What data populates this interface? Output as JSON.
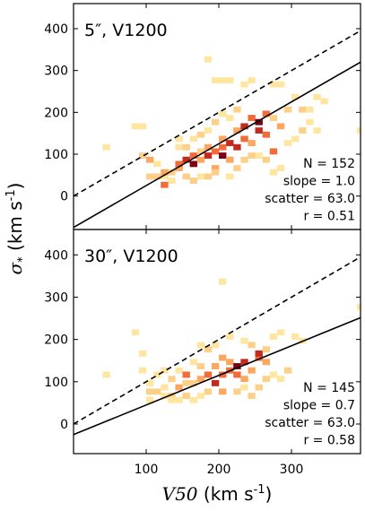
{
  "chart_data": {
    "type": "heatmap",
    "xlabel_var": "V50",
    "xlabel_unit": " (km s",
    "xlabel_exp": "-1",
    "xlabel_close": ")",
    "ylabel_var": "σ",
    "ylabel_sub": "*",
    "ylabel_unit": " (km s",
    "ylabel_exp": "-1",
    "ylabel_close": ")",
    "xlim": [
      0,
      395
    ],
    "x_ticks": [
      100,
      200,
      300
    ],
    "bin_size_x": 10,
    "bin_size_y": 14,
    "colors": [
      "#ffe6a0",
      "#fdd08a",
      "#fca75f",
      "#f26b3a",
      "#c52a1e",
      "#7a0016"
    ],
    "panels": [
      {
        "title": "5″, V1200",
        "ylim": [
          -80,
          460
        ],
        "y_ticks": [
          0,
          100,
          200,
          300,
          400
        ],
        "stats": [
          "N = 152",
          "slope = 1.0",
          "scatter = 63.0",
          "r = 0.51"
        ],
        "dashed_line": {
          "slope": 1.0,
          "intercept": 0
        },
        "fit_line": {
          "slope": 1.0,
          "intercept": -75
        },
        "bins": [
          [
            40,
            110,
            0
          ],
          [
            80,
            160,
            0
          ],
          [
            90,
            160,
            0
          ],
          [
            90,
            90,
            1
          ],
          [
            100,
            80,
            2
          ],
          [
            110,
            70,
            0
          ],
          [
            100,
            40,
            1
          ],
          [
            110,
            40,
            1
          ],
          [
            120,
            40,
            0
          ],
          [
            120,
            50,
            2
          ],
          [
            130,
            50,
            1
          ],
          [
            140,
            60,
            2
          ],
          [
            140,
            70,
            3
          ],
          [
            150,
            80,
            4
          ],
          [
            160,
            70,
            5
          ],
          [
            160,
            90,
            3
          ],
          [
            170,
            80,
            2
          ],
          [
            170,
            100,
            1
          ],
          [
            180,
            90,
            4
          ],
          [
            180,
            110,
            2
          ],
          [
            190,
            100,
            3
          ],
          [
            190,
            60,
            2
          ],
          [
            200,
            90,
            5
          ],
          [
            200,
            110,
            3
          ],
          [
            200,
            130,
            2
          ],
          [
            210,
            120,
            4
          ],
          [
            210,
            80,
            2
          ],
          [
            220,
            110,
            4
          ],
          [
            220,
            150,
            2
          ],
          [
            230,
            130,
            3
          ],
          [
            230,
            160,
            4
          ],
          [
            240,
            120,
            2
          ],
          [
            240,
            180,
            3
          ],
          [
            250,
            150,
            4
          ],
          [
            250,
            170,
            5
          ],
          [
            260,
            140,
            3
          ],
          [
            260,
            190,
            3
          ],
          [
            270,
            100,
            3
          ],
          [
            270,
            180,
            1
          ],
          [
            280,
            160,
            2
          ],
          [
            290,
            200,
            1
          ],
          [
            300,
            230,
            0
          ],
          [
            310,
            200,
            1
          ],
          [
            320,
            200,
            0
          ],
          [
            330,
            230,
            0
          ],
          [
            340,
            220,
            0
          ],
          [
            130,
            30,
            0
          ],
          [
            120,
            20,
            3
          ],
          [
            140,
            110,
            0
          ],
          [
            150,
            110,
            1
          ],
          [
            160,
            130,
            0
          ],
          [
            170,
            140,
            1
          ],
          [
            180,
            150,
            0
          ],
          [
            190,
            170,
            1
          ],
          [
            200,
            190,
            0
          ],
          [
            210,
            180,
            0
          ],
          [
            220,
            200,
            1
          ],
          [
            230,
            260,
            0
          ],
          [
            240,
            270,
            0
          ],
          [
            180,
            320,
            0
          ],
          [
            190,
            270,
            0
          ],
          [
            200,
            270,
            0
          ],
          [
            210,
            270,
            0
          ],
          [
            270,
            260,
            0
          ],
          [
            280,
            260,
            0
          ],
          [
            160,
            30,
            1
          ],
          [
            150,
            40,
            1
          ],
          [
            170,
            40,
            0
          ],
          [
            140,
            130,
            0
          ],
          [
            250,
            90,
            0
          ],
          [
            260,
            80,
            1
          ],
          [
            270,
            50,
            0
          ],
          [
            280,
            60,
            0
          ],
          [
            290,
            120,
            0
          ],
          [
            300,
            130,
            0
          ],
          [
            310,
            150,
            1
          ],
          [
            320,
            170,
            0
          ],
          [
            330,
            150,
            0
          ],
          [
            390,
            150,
            0
          ],
          [
            210,
            40,
            0
          ],
          [
            220,
            60,
            1
          ],
          [
            230,
            80,
            1
          ],
          [
            240,
            90,
            1
          ],
          [
            180,
            40,
            1
          ],
          [
            190,
            50,
            1
          ]
        ]
      },
      {
        "title": "30″, V1200",
        "ylim": [
          -70,
          460
        ],
        "y_ticks": [
          0,
          100,
          200,
          300,
          400
        ],
        "stats": [
          "N = 145",
          "slope = 0.7",
          "scatter = 63.0",
          "r = 0.58"
        ],
        "dashed_line": {
          "slope": 1.0,
          "intercept": 0
        },
        "fit_line": {
          "slope": 0.7,
          "intercept": -25
        },
        "bins": [
          [
            40,
            110,
            0
          ],
          [
            80,
            210,
            0
          ],
          [
            90,
            120,
            0
          ],
          [
            90,
            160,
            0
          ],
          [
            100,
            90,
            0
          ],
          [
            100,
            50,
            0
          ],
          [
            110,
            70,
            1
          ],
          [
            120,
            80,
            0
          ],
          [
            130,
            60,
            1
          ],
          [
            130,
            100,
            1
          ],
          [
            140,
            80,
            2
          ],
          [
            140,
            120,
            0
          ],
          [
            150,
            110,
            3
          ],
          [
            160,
            90,
            1
          ],
          [
            160,
            140,
            0
          ],
          [
            170,
            100,
            2
          ],
          [
            170,
            130,
            1
          ],
          [
            180,
            110,
            3
          ],
          [
            190,
            90,
            4
          ],
          [
            190,
            130,
            2
          ],
          [
            200,
            110,
            3
          ],
          [
            200,
            150,
            2
          ],
          [
            210,
            120,
            3
          ],
          [
            210,
            140,
            2
          ],
          [
            220,
            130,
            5
          ],
          [
            220,
            110,
            3
          ],
          [
            230,
            140,
            4
          ],
          [
            230,
            100,
            2
          ],
          [
            240,
            120,
            2
          ],
          [
            240,
            180,
            1
          ],
          [
            250,
            150,
            3
          ],
          [
            250,
            160,
            4
          ],
          [
            260,
            140,
            2
          ],
          [
            260,
            170,
            1
          ],
          [
            270,
            200,
            0
          ],
          [
            280,
            210,
            0
          ],
          [
            290,
            120,
            1
          ],
          [
            300,
            200,
            0
          ],
          [
            310,
            190,
            0
          ],
          [
            200,
            330,
            0
          ],
          [
            390,
            270,
            0
          ],
          [
            130,
            50,
            0
          ],
          [
            150,
            60,
            1
          ],
          [
            180,
            70,
            1
          ],
          [
            200,
            70,
            2
          ],
          [
            220,
            70,
            1
          ],
          [
            240,
            60,
            1
          ],
          [
            250,
            80,
            1
          ],
          [
            260,
            100,
            1
          ],
          [
            170,
            180,
            0
          ],
          [
            180,
            170,
            1
          ],
          [
            190,
            180,
            0
          ],
          [
            210,
            200,
            0
          ],
          [
            230,
            190,
            0
          ],
          [
            160,
            50,
            0
          ],
          [
            170,
            60,
            0
          ],
          [
            150,
            90,
            1
          ],
          [
            230,
            80,
            0
          ],
          [
            270,
            110,
            0
          ],
          [
            280,
            100,
            0
          ],
          [
            140,
            50,
            0
          ],
          [
            120,
            60,
            0
          ],
          [
            100,
            70,
            1
          ],
          [
            110,
            110,
            0
          ],
          [
            120,
            120,
            0
          ]
        ]
      }
    ]
  }
}
